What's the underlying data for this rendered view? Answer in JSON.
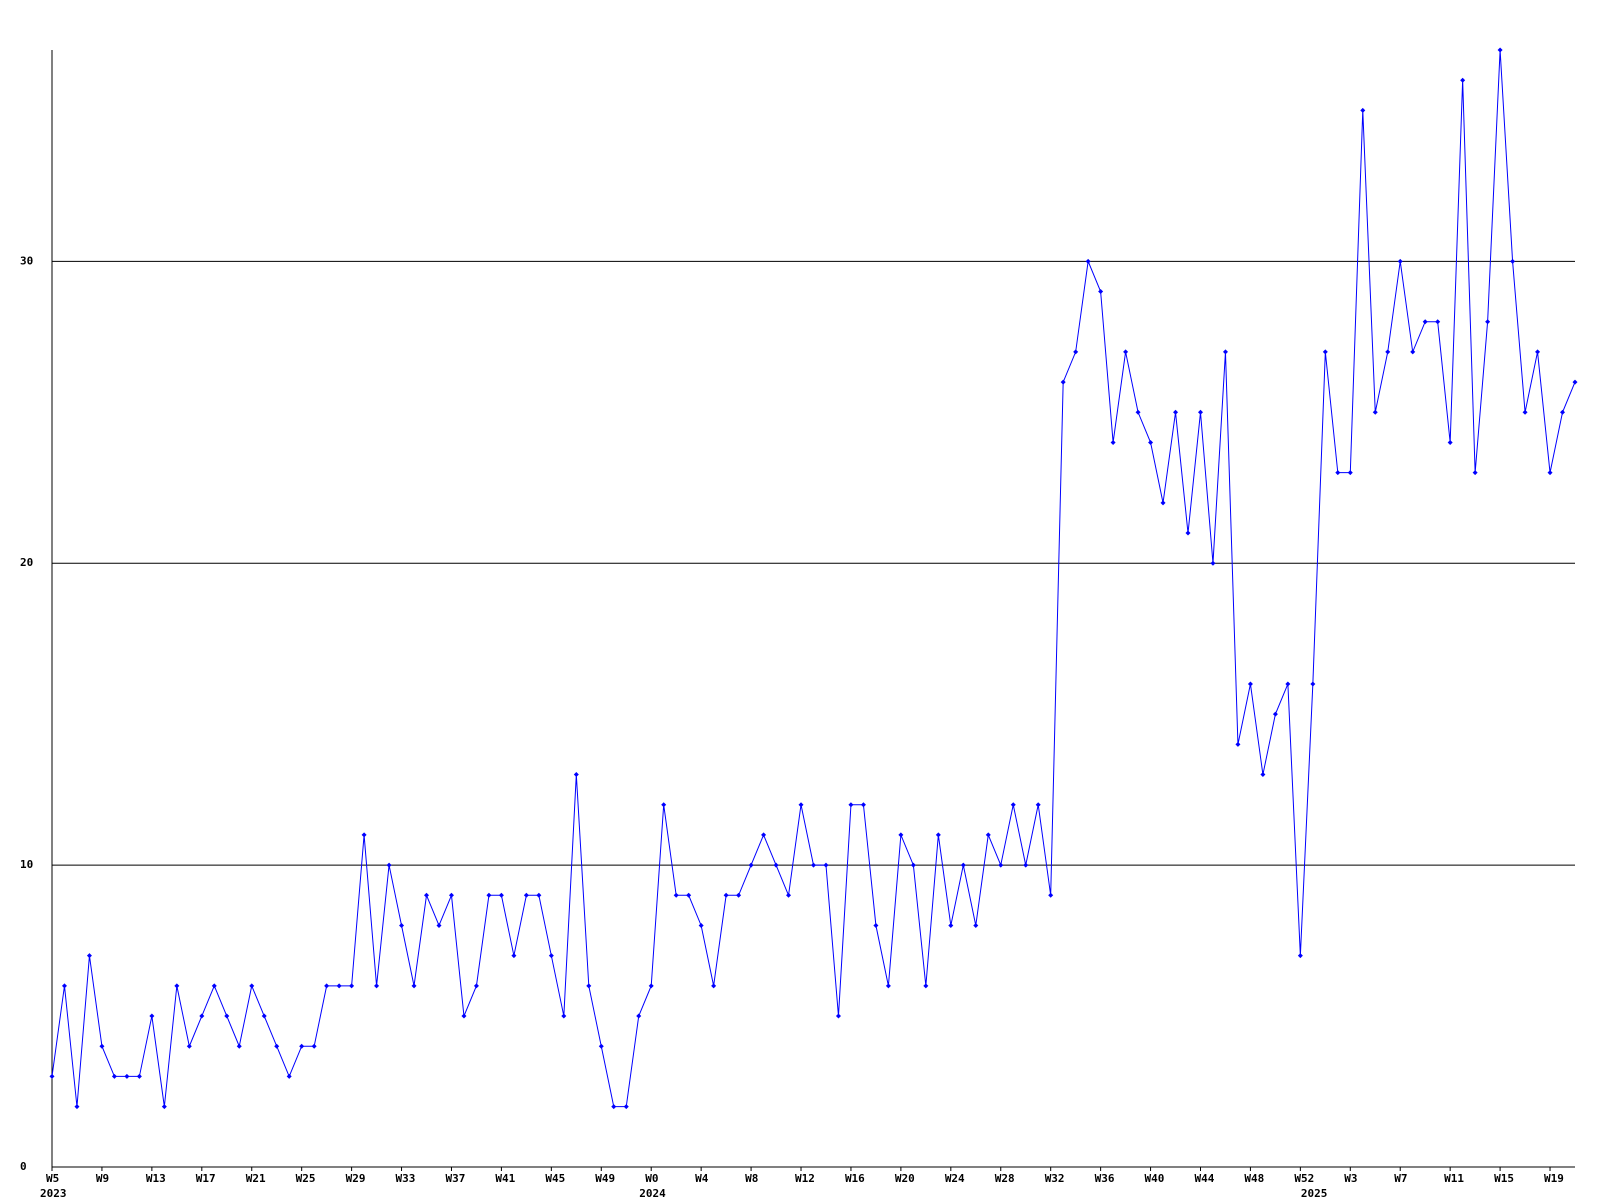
{
  "chart_data": {
    "type": "line",
    "categories": [
      "W5",
      null,
      null,
      null,
      "W9",
      null,
      null,
      null,
      "W13",
      null,
      null,
      null,
      "W17",
      null,
      null,
      null,
      "W21",
      null,
      null,
      null,
      "W25",
      null,
      null,
      null,
      "W29",
      null,
      null,
      null,
      "W33",
      null,
      null,
      null,
      "W37",
      null,
      null,
      null,
      "W41",
      null,
      null,
      null,
      "W45",
      null,
      null,
      null,
      "W49",
      null,
      null,
      null,
      "W0",
      null,
      null,
      null,
      "W4",
      null,
      null,
      null,
      "W8",
      null,
      null,
      null,
      "W12",
      null,
      null,
      null,
      "W16",
      null,
      null,
      null,
      "W20",
      null,
      null,
      null,
      "W24",
      null,
      null,
      null,
      "W28",
      null,
      null,
      null,
      "W32",
      null,
      null,
      null,
      "W36",
      null,
      null,
      null,
      "W40",
      null,
      null,
      null,
      "W44",
      null,
      null,
      null,
      "W48",
      null,
      null,
      null,
      "W52",
      null,
      null,
      null,
      "W3",
      null,
      null,
      null,
      "W7",
      null,
      null,
      null,
      "W11",
      null,
      null,
      null,
      "W15",
      null,
      null,
      null,
      "W19",
      null,
      null
    ],
    "year_labels": [
      "2023",
      null,
      null,
      null,
      null,
      null,
      null,
      null,
      null,
      null,
      null,
      null,
      null,
      null,
      null,
      null,
      null,
      null,
      null,
      null,
      null,
      null,
      null,
      null,
      null,
      null,
      null,
      null,
      null,
      null,
      null,
      null,
      null,
      null,
      null,
      null,
      null,
      null,
      null,
      null,
      null,
      null,
      null,
      null,
      null,
      null,
      null,
      null,
      "2024",
      null,
      null,
      null,
      null,
      null,
      null,
      null,
      null,
      null,
      null,
      null,
      null,
      null,
      null,
      null,
      null,
      null,
      null,
      null,
      null,
      null,
      null,
      null,
      null,
      null,
      null,
      null,
      null,
      null,
      null,
      null,
      null,
      null,
      null,
      null,
      null,
      null,
      null,
      null,
      null,
      null,
      null,
      null,
      null,
      null,
      null,
      null,
      null,
      null,
      null,
      null,
      null,
      "2025",
      null,
      null,
      null,
      null,
      null,
      null,
      null,
      null,
      null,
      null,
      null,
      null,
      null,
      null,
      null,
      null,
      null,
      null,
      null,
      null,
      null
    ],
    "series": [
      {
        "color": "#0000ff",
        "values": [
          3,
          6,
          2,
          7,
          4,
          3,
          3,
          3,
          5,
          2,
          6,
          4,
          5,
          6,
          5,
          4,
          6,
          5,
          4,
          3,
          4,
          4,
          6,
          6,
          6,
          11,
          6,
          10,
          8,
          6,
          9,
          8,
          9,
          5,
          6,
          9,
          9,
          7,
          9,
          9,
          7,
          5,
          13,
          6,
          4,
          2,
          2,
          5,
          6,
          12,
          9,
          9,
          8,
          6,
          9,
          9,
          10,
          11,
          10,
          9,
          12,
          10,
          10,
          5,
          12,
          12,
          8,
          6,
          11,
          10,
          6,
          11,
          8,
          10,
          8,
          11,
          10,
          12,
          10,
          12,
          9,
          26,
          27,
          30,
          29,
          24,
          27,
          25,
          24,
          22,
          25,
          21,
          25,
          20,
          27,
          14,
          16,
          13,
          15,
          16,
          7,
          16,
          27,
          23,
          23,
          35,
          25,
          27,
          30,
          27,
          28,
          28,
          24,
          36,
          23,
          28,
          37,
          30,
          25,
          27,
          23,
          25,
          26
        ]
      }
    ],
    "ylim": [
      0,
      37
    ],
    "yticks": [
      0,
      10,
      20,
      30
    ],
    "grid": true
  }
}
